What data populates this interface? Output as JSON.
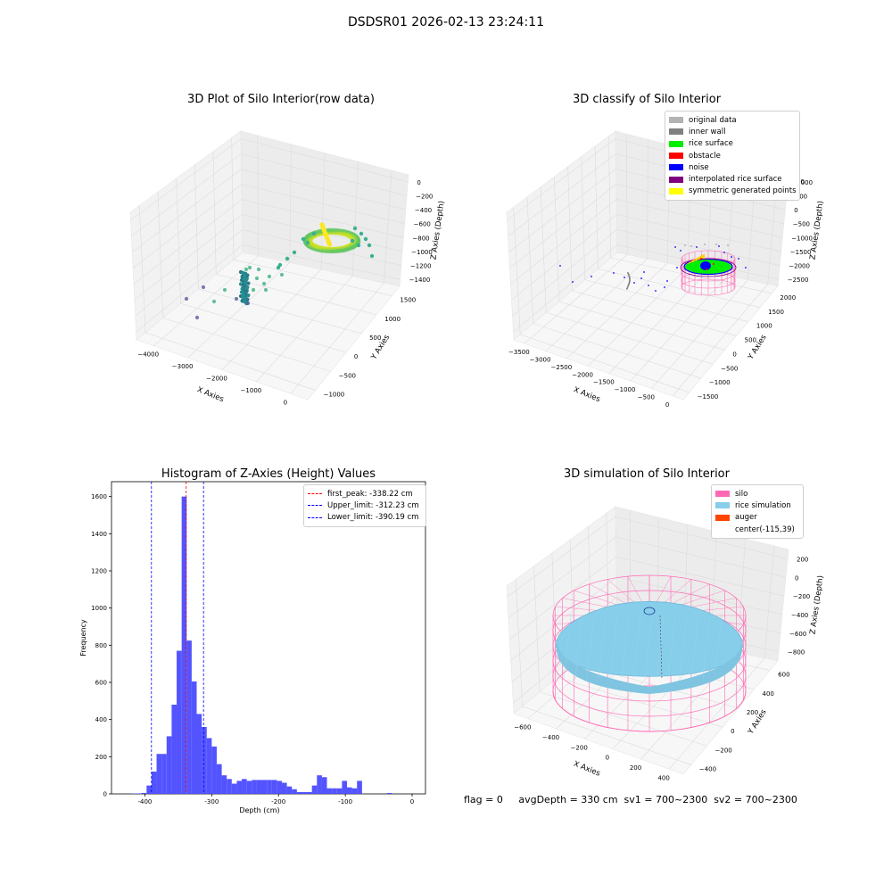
{
  "suptitle": "DSDSR01 2026-02-13 23:24:11",
  "footer": {
    "text": "flag = 0     avgDepth = 330 cm  sv1 = 700~2300  sv2 = 700~2300"
  },
  "colors": {
    "original": "#b3b3b3",
    "inner_wall": "#808080",
    "rice_surface": "#00ee00",
    "obstacle": "#ff0000",
    "noise": "#0000ff",
    "interpolated": "#800080",
    "symmetric": "#ffff00",
    "hist": "#4b4bff",
    "silo": "#ff69b4",
    "rice_sim": "#87ceeb",
    "auger": "#ff4500"
  },
  "chart_data": [
    {
      "id": "raw",
      "type": "scatter3d",
      "title": "3D Plot of Silo Interior(row data)",
      "xlabel": "X Axies",
      "ylabel": "Y Axies",
      "zlabel": "Z Axies (Depth)",
      "xticks": [
        "−4000",
        "−3000",
        "−2000",
        "−1000",
        "0"
      ],
      "yticks": [
        "−1000",
        "−500",
        "0",
        "500",
        "1000",
        "1500"
      ],
      "zticks": [
        "0",
        "−200",
        "−400",
        "−600",
        "−800",
        "−1000",
        "−1200",
        "−1400"
      ]
    },
    {
      "id": "classify",
      "type": "scatter3d",
      "title": "3D classify of Silo Interior",
      "xlabel": "X Axies",
      "ylabel": "Y Axies",
      "zlabel": "Z Axies (Depth)",
      "xticks": [
        "−3500",
        "−3000",
        "−2500",
        "−2000",
        "−1500",
        "−1000",
        "−500",
        "0"
      ],
      "yticks": [
        "−1500",
        "−1000",
        "−500",
        "0",
        "500",
        "1000",
        "1500",
        "2000"
      ],
      "zticks": [
        "1000",
        "500",
        "0",
        "−500",
        "−1000",
        "−1500",
        "−2000",
        "−2500"
      ],
      "zticks_top_partial": "1500",
      "legend": [
        {
          "label": "original data",
          "color": "#b3b3b3"
        },
        {
          "label": "inner wall",
          "color": "#808080"
        },
        {
          "label": "rice surface",
          "color": "#00ee00"
        },
        {
          "label": "obstacle",
          "color": "#ff0000"
        },
        {
          "label": "noise",
          "color": "#0000ff"
        },
        {
          "label": "interpolated rice surface",
          "color": "#800080"
        },
        {
          "label": "symmetric generated points",
          "color": "#ffff00"
        }
      ]
    },
    {
      "id": "hist",
      "type": "bar",
      "title": "Histogram of Z-Axies (Height) Values",
      "xlabel": "Depth (cm)",
      "ylabel": "Frequency",
      "xlim": [
        -450,
        20
      ],
      "ylim": [
        0,
        1680
      ],
      "xticks": [
        -400,
        -300,
        -200,
        -100,
        0
      ],
      "yticks": [
        0,
        200,
        400,
        600,
        800,
        1000,
        1200,
        1400,
        1600
      ],
      "bin_start": -420,
      "bin_width": 7.5,
      "values": [
        2,
        2,
        5,
        45,
        120,
        215,
        215,
        310,
        480,
        770,
        1600,
        825,
        605,
        430,
        360,
        300,
        255,
        160,
        100,
        80,
        55,
        70,
        80,
        70,
        75,
        75,
        75,
        75,
        75,
        70,
        60,
        40,
        25,
        10,
        10,
        10,
        45,
        100,
        90,
        30,
        30,
        30,
        70,
        35,
        30,
        70,
        0,
        0,
        0,
        0,
        0,
        5,
        0,
        0,
        0,
        0
      ],
      "vlines": [
        {
          "x": -338.22,
          "color": "#ff0000",
          "label": "first_peak: -338.22 cm"
        },
        {
          "x": -312.23,
          "color": "#0000ff",
          "label": "Upper_limit: -312.23 cm"
        },
        {
          "x": -390.19,
          "color": "#0000ff",
          "label": "Lower_limit: -390.19 cm"
        }
      ]
    },
    {
      "id": "sim",
      "type": "surface3d",
      "title": "3D simulation of Silo Interior",
      "xlabel": "X Axies",
      "ylabel": "Y Axies",
      "zlabel": "Z Axies (Depth)",
      "xticks": [
        "−600",
        "−400",
        "−200",
        "0",
        "200",
        "400"
      ],
      "yticks": [
        "−400",
        "−200",
        "0",
        "200",
        "400",
        "600"
      ],
      "zticks": [
        "200",
        "0",
        "−200",
        "−400",
        "−600",
        "−800"
      ],
      "legend": [
        {
          "label": "silo",
          "color": "#ff69b4"
        },
        {
          "label": "rice simulation",
          "color": "#87ceeb"
        },
        {
          "label": "auger",
          "color": "#ff4500"
        },
        {
          "label": "center(-115,39)",
          "color": ""
        }
      ]
    }
  ]
}
